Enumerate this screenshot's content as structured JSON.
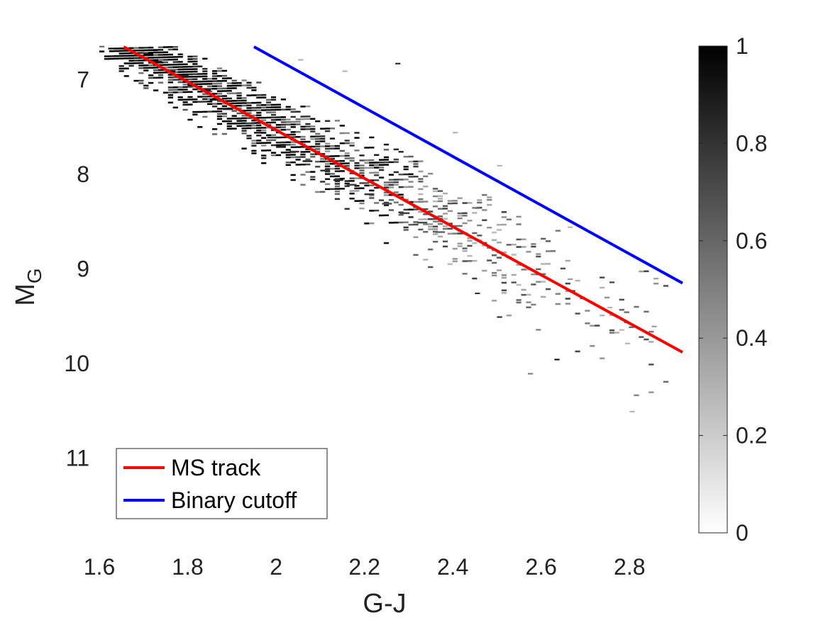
{
  "chart_data": {
    "type": "heatmap",
    "xlabel": "G-J",
    "ylabel": "M",
    "ylabel_subscript": "G",
    "x_range": [
      1.6,
      2.92
    ],
    "y_range": [
      6.62,
      11.85
    ],
    "y_reversed": true,
    "x_ticks": [
      "1.6",
      "1.8",
      "2",
      "2.2",
      "2.4",
      "2.6",
      "2.8"
    ],
    "y_ticks": [
      "7",
      "8",
      "9",
      "10",
      "11"
    ],
    "colorbar": {
      "range": [
        0,
        1
      ],
      "ticks": [
        "0",
        "0.2",
        "0.4",
        "0.6",
        "0.8",
        "1"
      ],
      "color_low": "#ffffff",
      "color_high": "#000000"
    },
    "bin_size": {
      "dx": 0.0111,
      "dy": 0.0267
    },
    "density_model": {
      "description_of_cells": "2D normalized histogram of stars; density highest along MS track",
      "dense_cells": [
        {
          "x": 1.62,
          "y": 6.66,
          "v": 0.9
        },
        {
          "x": 1.65,
          "y": 6.66,
          "v": 1.0
        },
        {
          "x": 1.68,
          "y": 6.68,
          "v": 0.95
        },
        {
          "x": 1.7,
          "y": 6.72,
          "v": 1.0
        },
        {
          "x": 1.72,
          "y": 6.8,
          "v": 0.9
        },
        {
          "x": 1.75,
          "y": 6.9,
          "v": 1.0
        },
        {
          "x": 1.78,
          "y": 6.95,
          "v": 0.85
        },
        {
          "x": 1.8,
          "y": 7.05,
          "v": 1.0
        },
        {
          "x": 1.83,
          "y": 7.1,
          "v": 0.9
        },
        {
          "x": 1.85,
          "y": 7.2,
          "v": 0.95
        },
        {
          "x": 1.88,
          "y": 7.3,
          "v": 0.85
        },
        {
          "x": 1.9,
          "y": 7.4,
          "v": 0.9
        },
        {
          "x": 1.93,
          "y": 7.45,
          "v": 0.8
        },
        {
          "x": 1.95,
          "y": 7.55,
          "v": 0.9
        },
        {
          "x": 1.98,
          "y": 7.6,
          "v": 0.85
        },
        {
          "x": 2.0,
          "y": 7.7,
          "v": 0.95
        },
        {
          "x": 2.03,
          "y": 7.75,
          "v": 0.8
        },
        {
          "x": 2.06,
          "y": 7.85,
          "v": 0.85
        },
        {
          "x": 2.1,
          "y": 7.95,
          "v": 0.8
        },
        {
          "x": 2.13,
          "y": 8.05,
          "v": 0.85
        },
        {
          "x": 2.16,
          "y": 8.1,
          "v": 0.75
        },
        {
          "x": 2.2,
          "y": 8.2,
          "v": 0.8
        },
        {
          "x": 2.24,
          "y": 8.3,
          "v": 0.7
        },
        {
          "x": 2.28,
          "y": 8.4,
          "v": 0.75
        },
        {
          "x": 2.32,
          "y": 8.5,
          "v": 0.7
        },
        {
          "x": 2.36,
          "y": 8.6,
          "v": 0.6
        }
      ]
    },
    "series": [
      {
        "name": "MS track",
        "color": "#ff0000",
        "x": [
          1.655,
          2.92
        ],
        "y": [
          6.65,
          9.88
        ]
      },
      {
        "name": "Binary cutoff",
        "color": "#0000ff",
        "x": [
          1.95,
          2.92
        ],
        "y": [
          6.65,
          9.15
        ]
      }
    ],
    "legend": {
      "placement": "bottom-left",
      "entries": [
        "MS track",
        "Binary cutoff"
      ]
    }
  }
}
